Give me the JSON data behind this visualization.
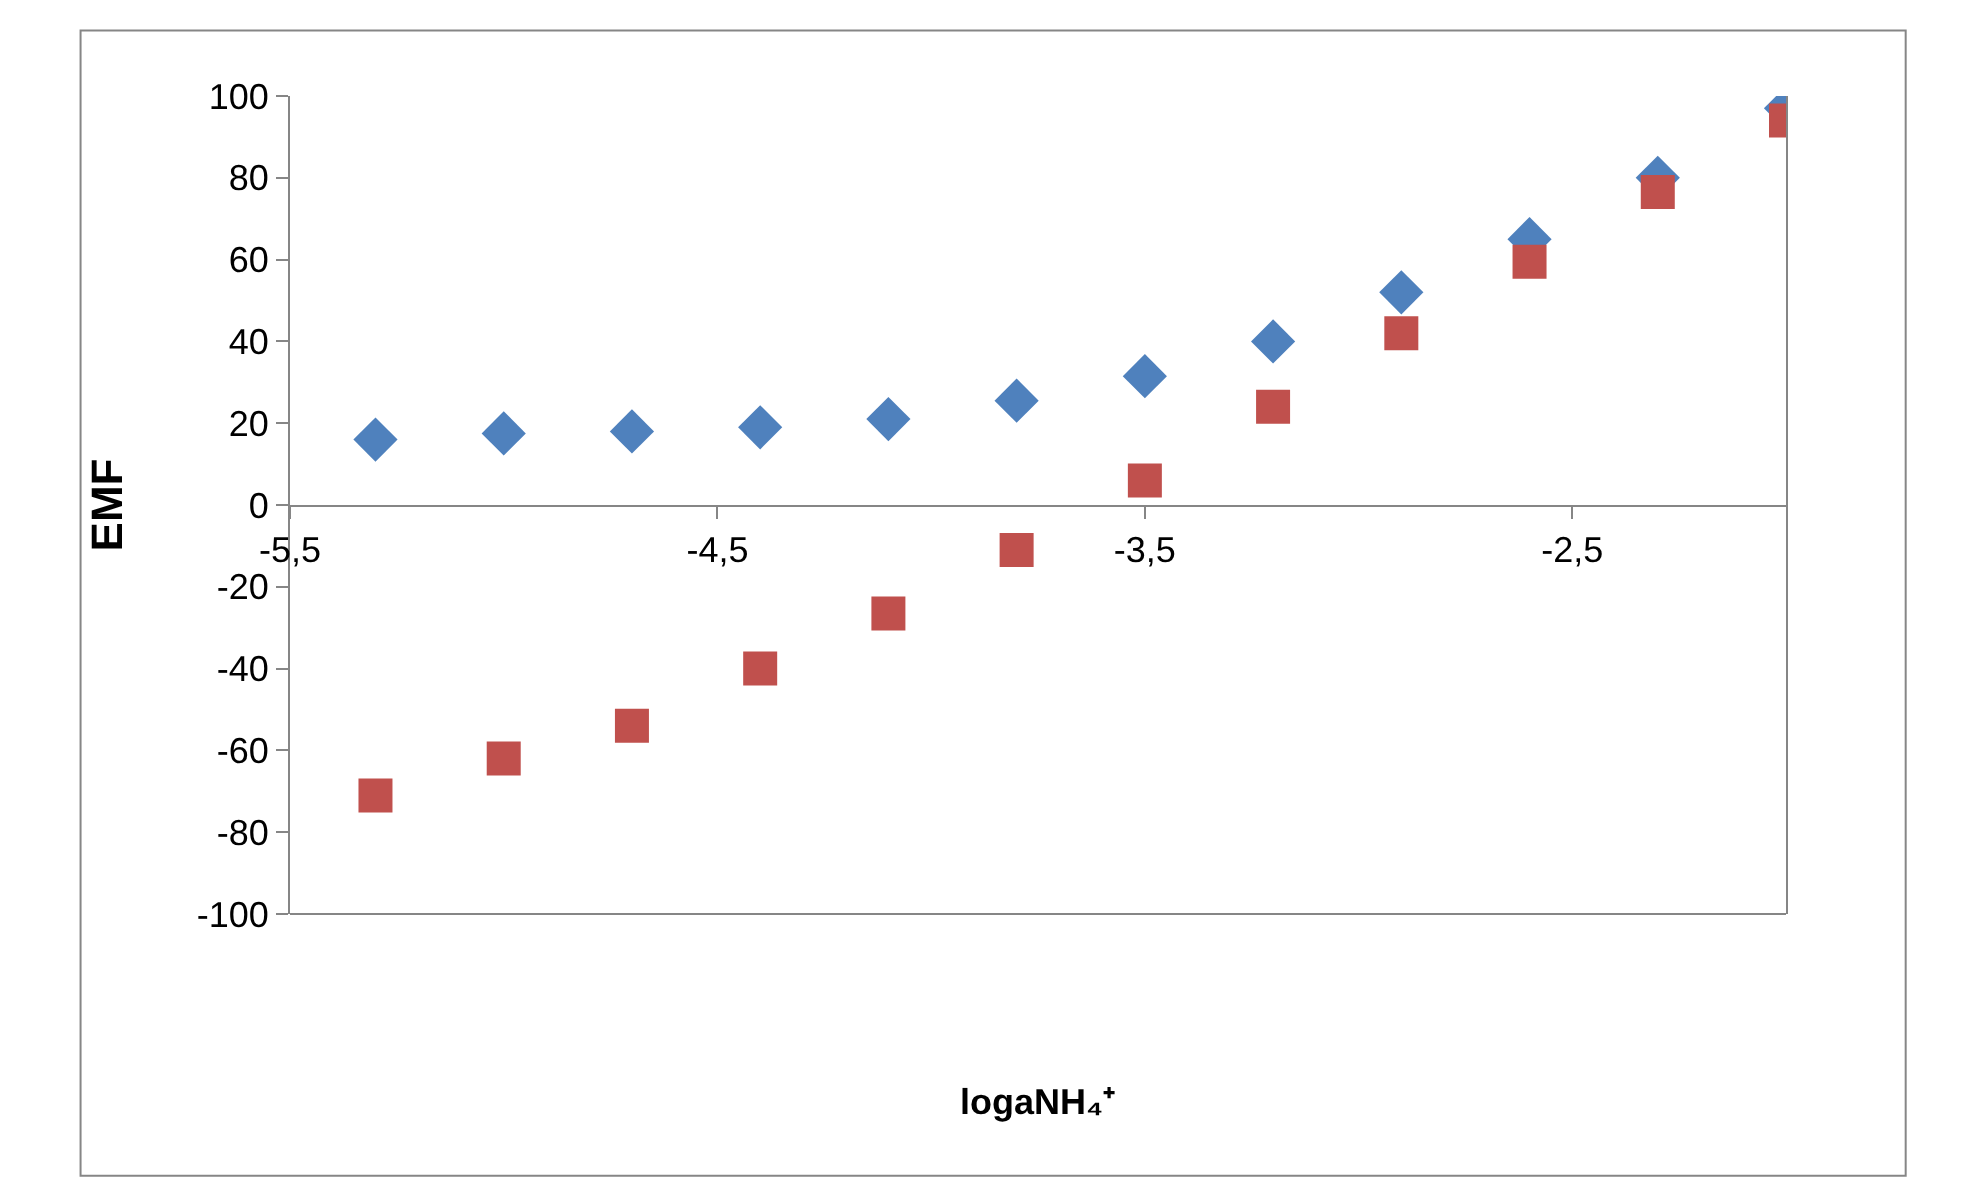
{
  "chart_data": {
    "type": "scatter",
    "xlabel": "logaNH₄⁺",
    "ylabel": "EMF",
    "xlim": [
      -5.5,
      -2
    ],
    "xticks": [
      {
        "value": -5.5,
        "label": "-5,5"
      },
      {
        "value": -4.5,
        "label": "-4,5"
      },
      {
        "value": -3.5,
        "label": "-3,5"
      },
      {
        "value": -2.5,
        "label": "-2,5"
      }
    ],
    "ylim": [
      -100,
      100
    ],
    "yticks": [
      -100,
      -80,
      -60,
      -40,
      -20,
      0,
      20,
      40,
      60,
      80,
      100
    ],
    "x": [
      -5.3,
      -5.0,
      -4.7,
      -4.4,
      -4.1,
      -3.8,
      -3.5,
      -3.2,
      -2.9,
      -2.6,
      -2.3,
      -2.0
    ],
    "series": [
      {
        "color": "#4f81bd",
        "marker": "diamond",
        "values": [
          16,
          17.5,
          18,
          19,
          21,
          25.5,
          31.5,
          40,
          52,
          65,
          80,
          97
        ]
      },
      {
        "color": "#c0504d",
        "marker": "square",
        "values": [
          -71,
          -62,
          -54,
          -40,
          -26.5,
          -11,
          6,
          24,
          42,
          59.5,
          76.5,
          94
        ]
      }
    ]
  }
}
